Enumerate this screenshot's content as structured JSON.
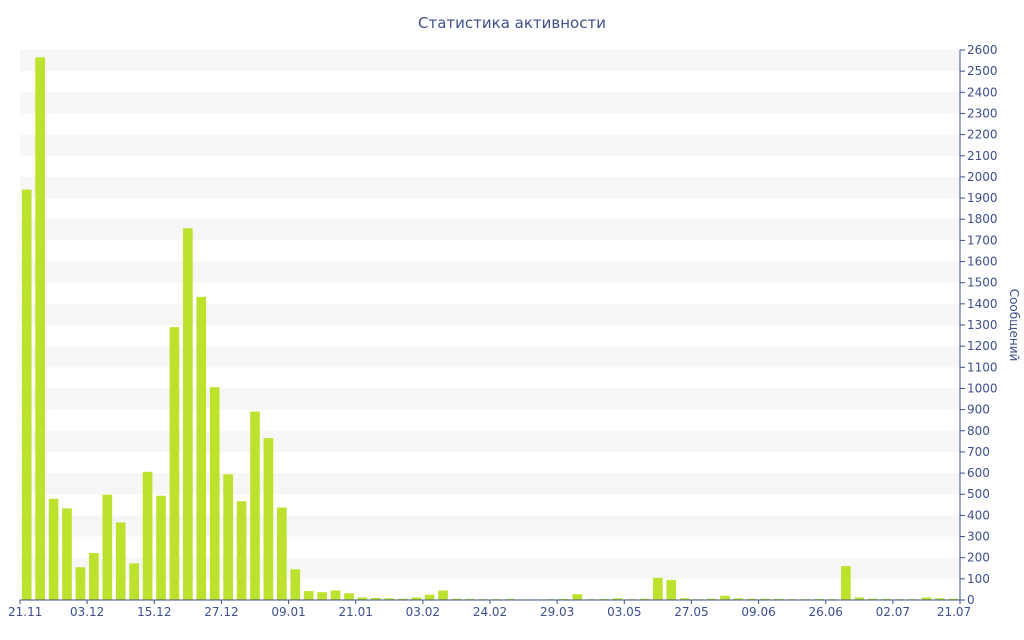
{
  "chart_data": {
    "type": "bar",
    "title": "Статистика активности",
    "xlabel": "",
    "ylabel": "Сообщений",
    "ylim": [
      0,
      2600
    ],
    "ytick_step": 100,
    "grid": "alternating horizontal bands",
    "bar_color": "#bde22e",
    "band_color": "#f6f6f6",
    "text_color": "#3d4f8c",
    "y_axis_side": "right",
    "x_tick_labels": [
      "21.11",
      "03.12",
      "15.12",
      "27.12",
      "09.01",
      "21.01",
      "03.02",
      "24.02",
      "29.03",
      "03.05",
      "27.05",
      "09.06",
      "26.06",
      "02.07",
      "21.07"
    ],
    "values": [
      1940,
      2565,
      478,
      433,
      155,
      222,
      498,
      367,
      173,
      606,
      493,
      1290,
      1757,
      1433,
      1006,
      594,
      467,
      891,
      765,
      437,
      145,
      42,
      37,
      45,
      32,
      12,
      10,
      8,
      6,
      12,
      25,
      45,
      6,
      5,
      4,
      4,
      5,
      3,
      3,
      4,
      5,
      28,
      4,
      5,
      8,
      4,
      6,
      105,
      95,
      8,
      4,
      6,
      20,
      8,
      6,
      6,
      5,
      4,
      4,
      5,
      4,
      160,
      12,
      6,
      5,
      4,
      4,
      12,
      8,
      6
    ]
  }
}
